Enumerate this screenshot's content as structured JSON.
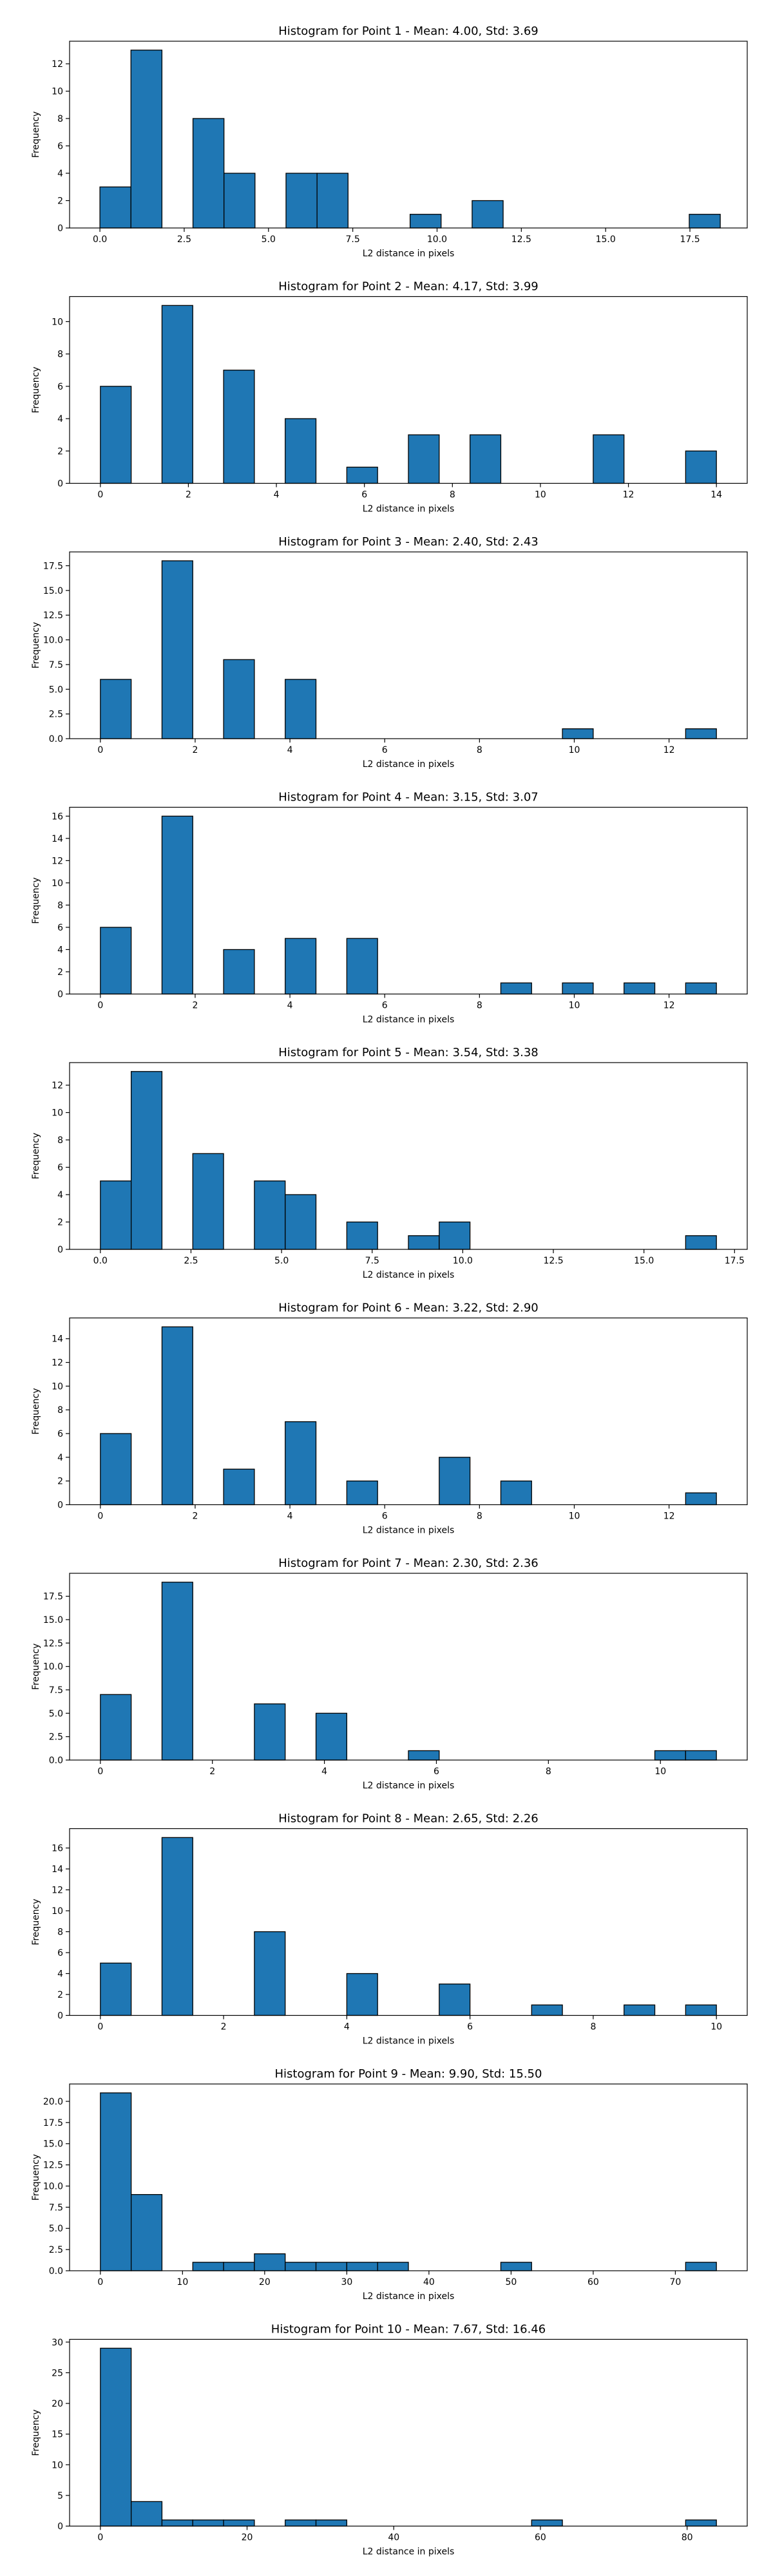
{
  "chart_data": [
    {
      "type": "bar",
      "title": "Histogram for Point 1 - Mean: 4.00, Std: 3.69",
      "xlabel": "L2 distance in pixels",
      "ylabel": "Frequency",
      "xlim": [
        -0.9,
        19.2
      ],
      "ylim": [
        0,
        13.65
      ],
      "xticks": [
        0.0,
        2.5,
        5.0,
        7.5,
        10.0,
        12.5,
        15.0,
        17.5
      ],
      "xtick_labels": [
        "0.0",
        "2.5",
        "5.0",
        "7.5",
        "10.0",
        "12.5",
        "15.0",
        "17.5"
      ],
      "yticks": [
        0,
        2,
        4,
        6,
        8,
        10,
        12
      ],
      "ytick_labels": [
        "0",
        "2",
        "4",
        "6",
        "8",
        "10",
        "12"
      ],
      "bins": [
        {
          "x0": 0.0,
          "x1": 0.92,
          "count": 3
        },
        {
          "x0": 0.92,
          "x1": 1.84,
          "count": 13
        },
        {
          "x0": 2.76,
          "x1": 3.68,
          "count": 8
        },
        {
          "x0": 3.68,
          "x1": 4.6,
          "count": 4
        },
        {
          "x0": 5.52,
          "x1": 6.44,
          "count": 4
        },
        {
          "x0": 6.44,
          "x1": 7.36,
          "count": 4
        },
        {
          "x0": 9.2,
          "x1": 10.12,
          "count": 1
        },
        {
          "x0": 11.04,
          "x1": 11.96,
          "count": 2
        },
        {
          "x0": 17.48,
          "x1": 18.4,
          "count": 1
        }
      ]
    },
    {
      "type": "bar",
      "title": "Histogram for Point 2 - Mean: 4.17, Std: 3.99",
      "xlabel": "L2 distance in pixels",
      "ylabel": "Frequency",
      "xlim": [
        -0.7,
        14.7
      ],
      "ylim": [
        0,
        11.55
      ],
      "xticks": [
        0,
        2,
        4,
        6,
        8,
        10,
        12,
        14
      ],
      "xtick_labels": [
        "0",
        "2",
        "4",
        "6",
        "8",
        "10",
        "12",
        "14"
      ],
      "yticks": [
        0,
        2,
        4,
        6,
        8,
        10
      ],
      "ytick_labels": [
        "0",
        "2",
        "4",
        "6",
        "8",
        "10"
      ],
      "bins": [
        {
          "x0": 0.0,
          "x1": 0.7,
          "count": 6
        },
        {
          "x0": 1.4,
          "x1": 2.1,
          "count": 11
        },
        {
          "x0": 2.8,
          "x1": 3.5,
          "count": 7
        },
        {
          "x0": 4.2,
          "x1": 4.9,
          "count": 4
        },
        {
          "x0": 5.6,
          "x1": 6.3,
          "count": 1
        },
        {
          "x0": 7.0,
          "x1": 7.7,
          "count": 3
        },
        {
          "x0": 8.4,
          "x1": 9.1,
          "count": 3
        },
        {
          "x0": 11.2,
          "x1": 11.9,
          "count": 3
        },
        {
          "x0": 13.3,
          "x1": 14.0,
          "count": 2
        }
      ]
    },
    {
      "type": "bar",
      "title": "Histogram for Point 3 - Mean: 2.40, Std: 2.43",
      "xlabel": "L2 distance in pixels",
      "ylabel": "Frequency",
      "xlim": [
        -0.65,
        13.65
      ],
      "ylim": [
        0,
        18.9
      ],
      "xticks": [
        0,
        2,
        4,
        6,
        8,
        10,
        12
      ],
      "xtick_labels": [
        "0",
        "2",
        "4",
        "6",
        "8",
        "10",
        "12"
      ],
      "yticks": [
        0,
        2.5,
        5.0,
        7.5,
        10.0,
        12.5,
        15.0,
        17.5
      ],
      "ytick_labels": [
        "0.0",
        "2.5",
        "5.0",
        "7.5",
        "10.0",
        "12.5",
        "15.0",
        "17.5"
      ],
      "bins": [
        {
          "x0": 0.0,
          "x1": 0.65,
          "count": 6
        },
        {
          "x0": 1.3,
          "x1": 1.95,
          "count": 18
        },
        {
          "x0": 2.6,
          "x1": 3.25,
          "count": 8
        },
        {
          "x0": 3.9,
          "x1": 4.55,
          "count": 6
        },
        {
          "x0": 9.75,
          "x1": 10.4,
          "count": 1
        },
        {
          "x0": 12.35,
          "x1": 13.0,
          "count": 1
        }
      ]
    },
    {
      "type": "bar",
      "title": "Histogram for Point 4 - Mean: 3.15, Std: 3.07",
      "xlabel": "L2 distance in pixels",
      "ylabel": "Frequency",
      "xlim": [
        -0.65,
        13.65
      ],
      "ylim": [
        0,
        16.8
      ],
      "xticks": [
        0,
        2,
        4,
        6,
        8,
        10,
        12
      ],
      "xtick_labels": [
        "0",
        "2",
        "4",
        "6",
        "8",
        "10",
        "12"
      ],
      "yticks": [
        0,
        2,
        4,
        6,
        8,
        10,
        12,
        14,
        16
      ],
      "ytick_labels": [
        "0",
        "2",
        "4",
        "6",
        "8",
        "10",
        "12",
        "14",
        "16"
      ],
      "bins": [
        {
          "x0": 0.0,
          "x1": 0.65,
          "count": 6
        },
        {
          "x0": 1.3,
          "x1": 1.95,
          "count": 16
        },
        {
          "x0": 2.6,
          "x1": 3.25,
          "count": 4
        },
        {
          "x0": 3.9,
          "x1": 4.55,
          "count": 5
        },
        {
          "x0": 5.2,
          "x1": 5.85,
          "count": 5
        },
        {
          "x0": 8.45,
          "x1": 9.1,
          "count": 1
        },
        {
          "x0": 9.75,
          "x1": 10.4,
          "count": 1
        },
        {
          "x0": 11.05,
          "x1": 11.7,
          "count": 1
        },
        {
          "x0": 12.35,
          "x1": 13.0,
          "count": 1
        }
      ]
    },
    {
      "type": "bar",
      "title": "Histogram for Point 5 - Mean: 3.54, Std: 3.38",
      "xlabel": "L2 distance in pixels",
      "ylabel": "Frequency",
      "xlim": [
        -0.85,
        17.85
      ],
      "ylim": [
        0,
        13.65
      ],
      "xticks": [
        0.0,
        2.5,
        5.0,
        7.5,
        10.0,
        12.5,
        15.0,
        17.5
      ],
      "xtick_labels": [
        "0.0",
        "2.5",
        "5.0",
        "7.5",
        "10.0",
        "12.5",
        "15.0",
        "17.5"
      ],
      "yticks": [
        0,
        2,
        4,
        6,
        8,
        10,
        12
      ],
      "ytick_labels": [
        "0",
        "2",
        "4",
        "6",
        "8",
        "10",
        "12"
      ],
      "bins": [
        {
          "x0": 0.0,
          "x1": 0.85,
          "count": 5
        },
        {
          "x0": 0.85,
          "x1": 1.7,
          "count": 13
        },
        {
          "x0": 2.55,
          "x1": 3.4,
          "count": 7
        },
        {
          "x0": 4.25,
          "x1": 5.1,
          "count": 5
        },
        {
          "x0": 5.1,
          "x1": 5.95,
          "count": 4
        },
        {
          "x0": 6.8,
          "x1": 7.65,
          "count": 2
        },
        {
          "x0": 8.5,
          "x1": 9.35,
          "count": 1
        },
        {
          "x0": 9.35,
          "x1": 10.2,
          "count": 2
        },
        {
          "x0": 16.15,
          "x1": 17.0,
          "count": 1
        }
      ]
    },
    {
      "type": "bar",
      "title": "Histogram for Point 6 - Mean: 3.22, Std: 2.90",
      "xlabel": "L2 distance in pixels",
      "ylabel": "Frequency",
      "xlim": [
        -0.65,
        13.65
      ],
      "ylim": [
        0,
        15.75
      ],
      "xticks": [
        0,
        2,
        4,
        6,
        8,
        10,
        12
      ],
      "xtick_labels": [
        "0",
        "2",
        "4",
        "6",
        "8",
        "10",
        "12"
      ],
      "yticks": [
        0,
        2,
        4,
        6,
        8,
        10,
        12,
        14
      ],
      "ytick_labels": [
        "0",
        "2",
        "4",
        "6",
        "8",
        "10",
        "12",
        "14"
      ],
      "bins": [
        {
          "x0": 0.0,
          "x1": 0.65,
          "count": 6
        },
        {
          "x0": 1.3,
          "x1": 1.95,
          "count": 15
        },
        {
          "x0": 2.6,
          "x1": 3.25,
          "count": 3
        },
        {
          "x0": 3.9,
          "x1": 4.55,
          "count": 7
        },
        {
          "x0": 5.2,
          "x1": 5.85,
          "count": 2
        },
        {
          "x0": 7.15,
          "x1": 7.8,
          "count": 4
        },
        {
          "x0": 8.45,
          "x1": 9.1,
          "count": 2
        },
        {
          "x0": 12.35,
          "x1": 13.0,
          "count": 1
        }
      ]
    },
    {
      "type": "bar",
      "title": "Histogram for Point 7 - Mean: 2.30, Std: 2.36",
      "xlabel": "L2 distance in pixels",
      "ylabel": "Frequency",
      "xlim": [
        -0.55,
        11.55
      ],
      "ylim": [
        0,
        19.95
      ],
      "xticks": [
        0,
        2,
        4,
        6,
        8,
        10
      ],
      "xtick_labels": [
        "0",
        "2",
        "4",
        "6",
        "8",
        "10"
      ],
      "yticks": [
        0,
        2.5,
        5.0,
        7.5,
        10.0,
        12.5,
        15.0,
        17.5
      ],
      "ytick_labels": [
        "0.0",
        "2.5",
        "5.0",
        "7.5",
        "10.0",
        "12.5",
        "15.0",
        "17.5"
      ],
      "bins": [
        {
          "x0": 0.0,
          "x1": 0.55,
          "count": 7
        },
        {
          "x0": 1.1,
          "x1": 1.65,
          "count": 19
        },
        {
          "x0": 2.75,
          "x1": 3.3,
          "count": 6
        },
        {
          "x0": 3.85,
          "x1": 4.4,
          "count": 5
        },
        {
          "x0": 5.5,
          "x1": 6.05,
          "count": 1
        },
        {
          "x0": 9.9,
          "x1": 10.45,
          "count": 1
        },
        {
          "x0": 10.45,
          "x1": 11.0,
          "count": 1
        }
      ]
    },
    {
      "type": "bar",
      "title": "Histogram for Point 8 - Mean: 2.65, Std: 2.26",
      "xlabel": "L2 distance in pixels",
      "ylabel": "Frequency",
      "xlim": [
        -0.5,
        10.5
      ],
      "ylim": [
        0,
        17.85
      ],
      "xticks": [
        0,
        2,
        4,
        6,
        8,
        10
      ],
      "xtick_labels": [
        "0",
        "2",
        "4",
        "6",
        "8",
        "10"
      ],
      "yticks": [
        0,
        2,
        4,
        6,
        8,
        10,
        12,
        14,
        16
      ],
      "ytick_labels": [
        "0",
        "2",
        "4",
        "6",
        "8",
        "10",
        "12",
        "14",
        "16"
      ],
      "bins": [
        {
          "x0": 0.0,
          "x1": 0.5,
          "count": 5
        },
        {
          "x0": 1.0,
          "x1": 1.5,
          "count": 17
        },
        {
          "x0": 2.5,
          "x1": 3.0,
          "count": 8
        },
        {
          "x0": 4.0,
          "x1": 4.5,
          "count": 4
        },
        {
          "x0": 5.5,
          "x1": 6.0,
          "count": 3
        },
        {
          "x0": 7.0,
          "x1": 7.5,
          "count": 1
        },
        {
          "x0": 8.5,
          "x1": 9.0,
          "count": 1
        },
        {
          "x0": 9.5,
          "x1": 10.0,
          "count": 1
        }
      ]
    },
    {
      "type": "bar",
      "title": "Histogram for Point 9 - Mean: 9.90, Std: 15.50",
      "xlabel": "L2 distance in pixels",
      "ylabel": "Frequency",
      "xlim": [
        -3.75,
        78.75
      ],
      "ylim": [
        0,
        22.05
      ],
      "xticks": [
        0,
        10,
        20,
        30,
        40,
        50,
        60,
        70
      ],
      "xtick_labels": [
        "0",
        "10",
        "20",
        "30",
        "40",
        "50",
        "60",
        "70"
      ],
      "yticks": [
        0,
        2.5,
        5.0,
        7.5,
        10.0,
        12.5,
        15.0,
        17.5,
        20.0
      ],
      "ytick_labels": [
        "0.0",
        "2.5",
        "5.0",
        "7.5",
        "10.0",
        "12.5",
        "15.0",
        "17.5",
        "20.0"
      ],
      "bins": [
        {
          "x0": 0.0,
          "x1": 3.75,
          "count": 21
        },
        {
          "x0": 3.75,
          "x1": 7.5,
          "count": 9
        },
        {
          "x0": 11.25,
          "x1": 15.0,
          "count": 1
        },
        {
          "x0": 15.0,
          "x1": 18.75,
          "count": 1
        },
        {
          "x0": 18.75,
          "x1": 22.5,
          "count": 2
        },
        {
          "x0": 22.5,
          "x1": 26.25,
          "count": 1
        },
        {
          "x0": 26.25,
          "x1": 30.0,
          "count": 1
        },
        {
          "x0": 30.0,
          "x1": 33.75,
          "count": 1
        },
        {
          "x0": 33.75,
          "x1": 37.5,
          "count": 1
        },
        {
          "x0": 48.75,
          "x1": 52.5,
          "count": 1
        },
        {
          "x0": 71.25,
          "x1": 75.0,
          "count": 1
        }
      ]
    },
    {
      "type": "bar",
      "title": "Histogram for Point 10 - Mean: 7.67, Std: 16.46",
      "xlabel": "L2 distance in pixels",
      "ylabel": "Frequency",
      "xlim": [
        -4.2,
        88.2
      ],
      "ylim": [
        0,
        30.45
      ],
      "xticks": [
        0,
        20,
        40,
        60,
        80
      ],
      "xtick_labels": [
        "0",
        "20",
        "40",
        "60",
        "80"
      ],
      "yticks": [
        0,
        5,
        10,
        15,
        20,
        25,
        30
      ],
      "ytick_labels": [
        "0",
        "5",
        "10",
        "15",
        "20",
        "25",
        "30"
      ],
      "bins": [
        {
          "x0": 0.0,
          "x1": 4.2,
          "count": 29
        },
        {
          "x0": 4.2,
          "x1": 8.4,
          "count": 4
        },
        {
          "x0": 8.4,
          "x1": 12.6,
          "count": 1
        },
        {
          "x0": 12.6,
          "x1": 16.8,
          "count": 1
        },
        {
          "x0": 16.8,
          "x1": 21.0,
          "count": 1
        },
        {
          "x0": 25.2,
          "x1": 29.4,
          "count": 1
        },
        {
          "x0": 29.4,
          "x1": 33.6,
          "count": 1
        },
        {
          "x0": 58.8,
          "x1": 63.0,
          "count": 1
        },
        {
          "x0": 79.8,
          "x1": 84.0,
          "count": 1
        }
      ]
    }
  ],
  "colors": {
    "bar_fill": "#1f77b4",
    "bar_edge": "#000000",
    "background": "#ffffff"
  }
}
